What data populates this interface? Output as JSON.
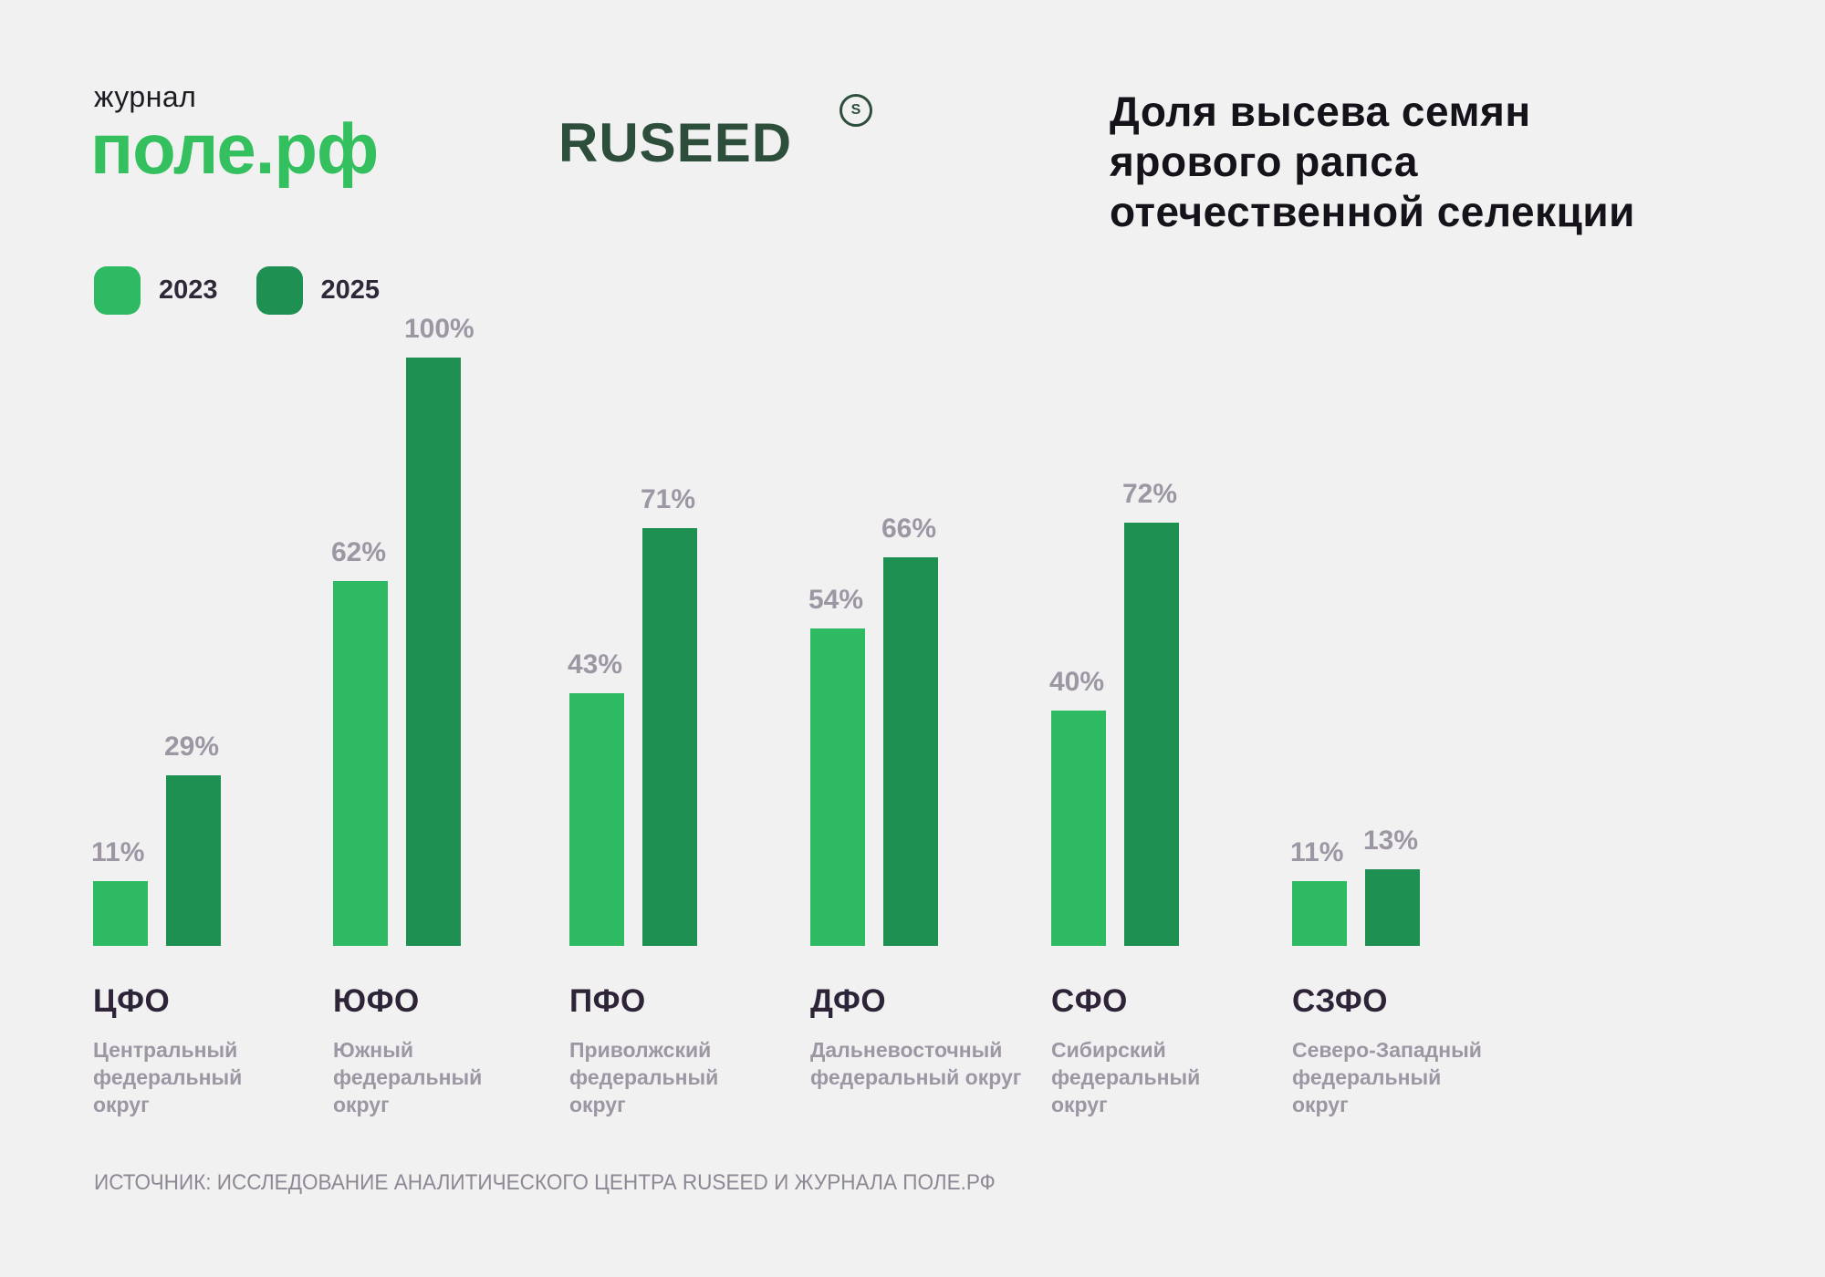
{
  "header": {
    "magazine_label": "журнал",
    "magazine_logo": "поле.рф",
    "partner_logo": "RUSEED",
    "partner_mark": "S",
    "title_lines": [
      "Доля высева семян",
      "ярового рапса",
      "отечественной селекции"
    ]
  },
  "legend": [
    {
      "label": "2023",
      "color": "#2dba63"
    },
    {
      "label": "2025",
      "color": "#1e9051"
    }
  ],
  "chart_data": {
    "type": "bar",
    "title": "Доля высева семян ярового рапса отечественной селекции",
    "unit": "%",
    "ylim": [
      0,
      100
    ],
    "grid": false,
    "value_labels": true,
    "legend_position": "top-left",
    "categories": [
      "ЦФО",
      "ЮФО",
      "ПФО",
      "ДФО",
      "СФО",
      "СЗФО"
    ],
    "category_description_lines": [
      [
        "Центральный",
        "федеральный",
        "округ"
      ],
      [
        "Южный",
        "федеральный",
        "округ"
      ],
      [
        "Приволжский",
        "федеральный",
        "округ"
      ],
      [
        "Дальневосточный",
        "федеральный округ"
      ],
      [
        "Сибирский",
        "федеральный",
        "округ"
      ],
      [
        "Северо-Западный",
        "федеральный",
        "округ"
      ]
    ],
    "series": [
      {
        "name": "2023",
        "color": "#2dba63",
        "values": [
          11,
          62,
          43,
          54,
          40,
          11
        ]
      },
      {
        "name": "2025",
        "color": "#1e9051",
        "values": [
          29,
          100,
          71,
          66,
          72,
          13
        ]
      }
    ]
  },
  "footer": {
    "source": "ИСТОЧНИК: ИССЛЕДОВАНИЕ АНАЛИТИЧЕСКОГО ЦЕНТРА RUSEED И ЖУРНАЛА ПОЛЕ.РФ"
  },
  "colors": {
    "background": "#f2f1f2",
    "series_2023": "#2dba63",
    "series_2025": "#1e9051",
    "pole_logo_green": "#35c05f",
    "ruseed_green": "#2d4e3b",
    "title_text": "#15121a",
    "muted_gray": "#9d96a3"
  }
}
